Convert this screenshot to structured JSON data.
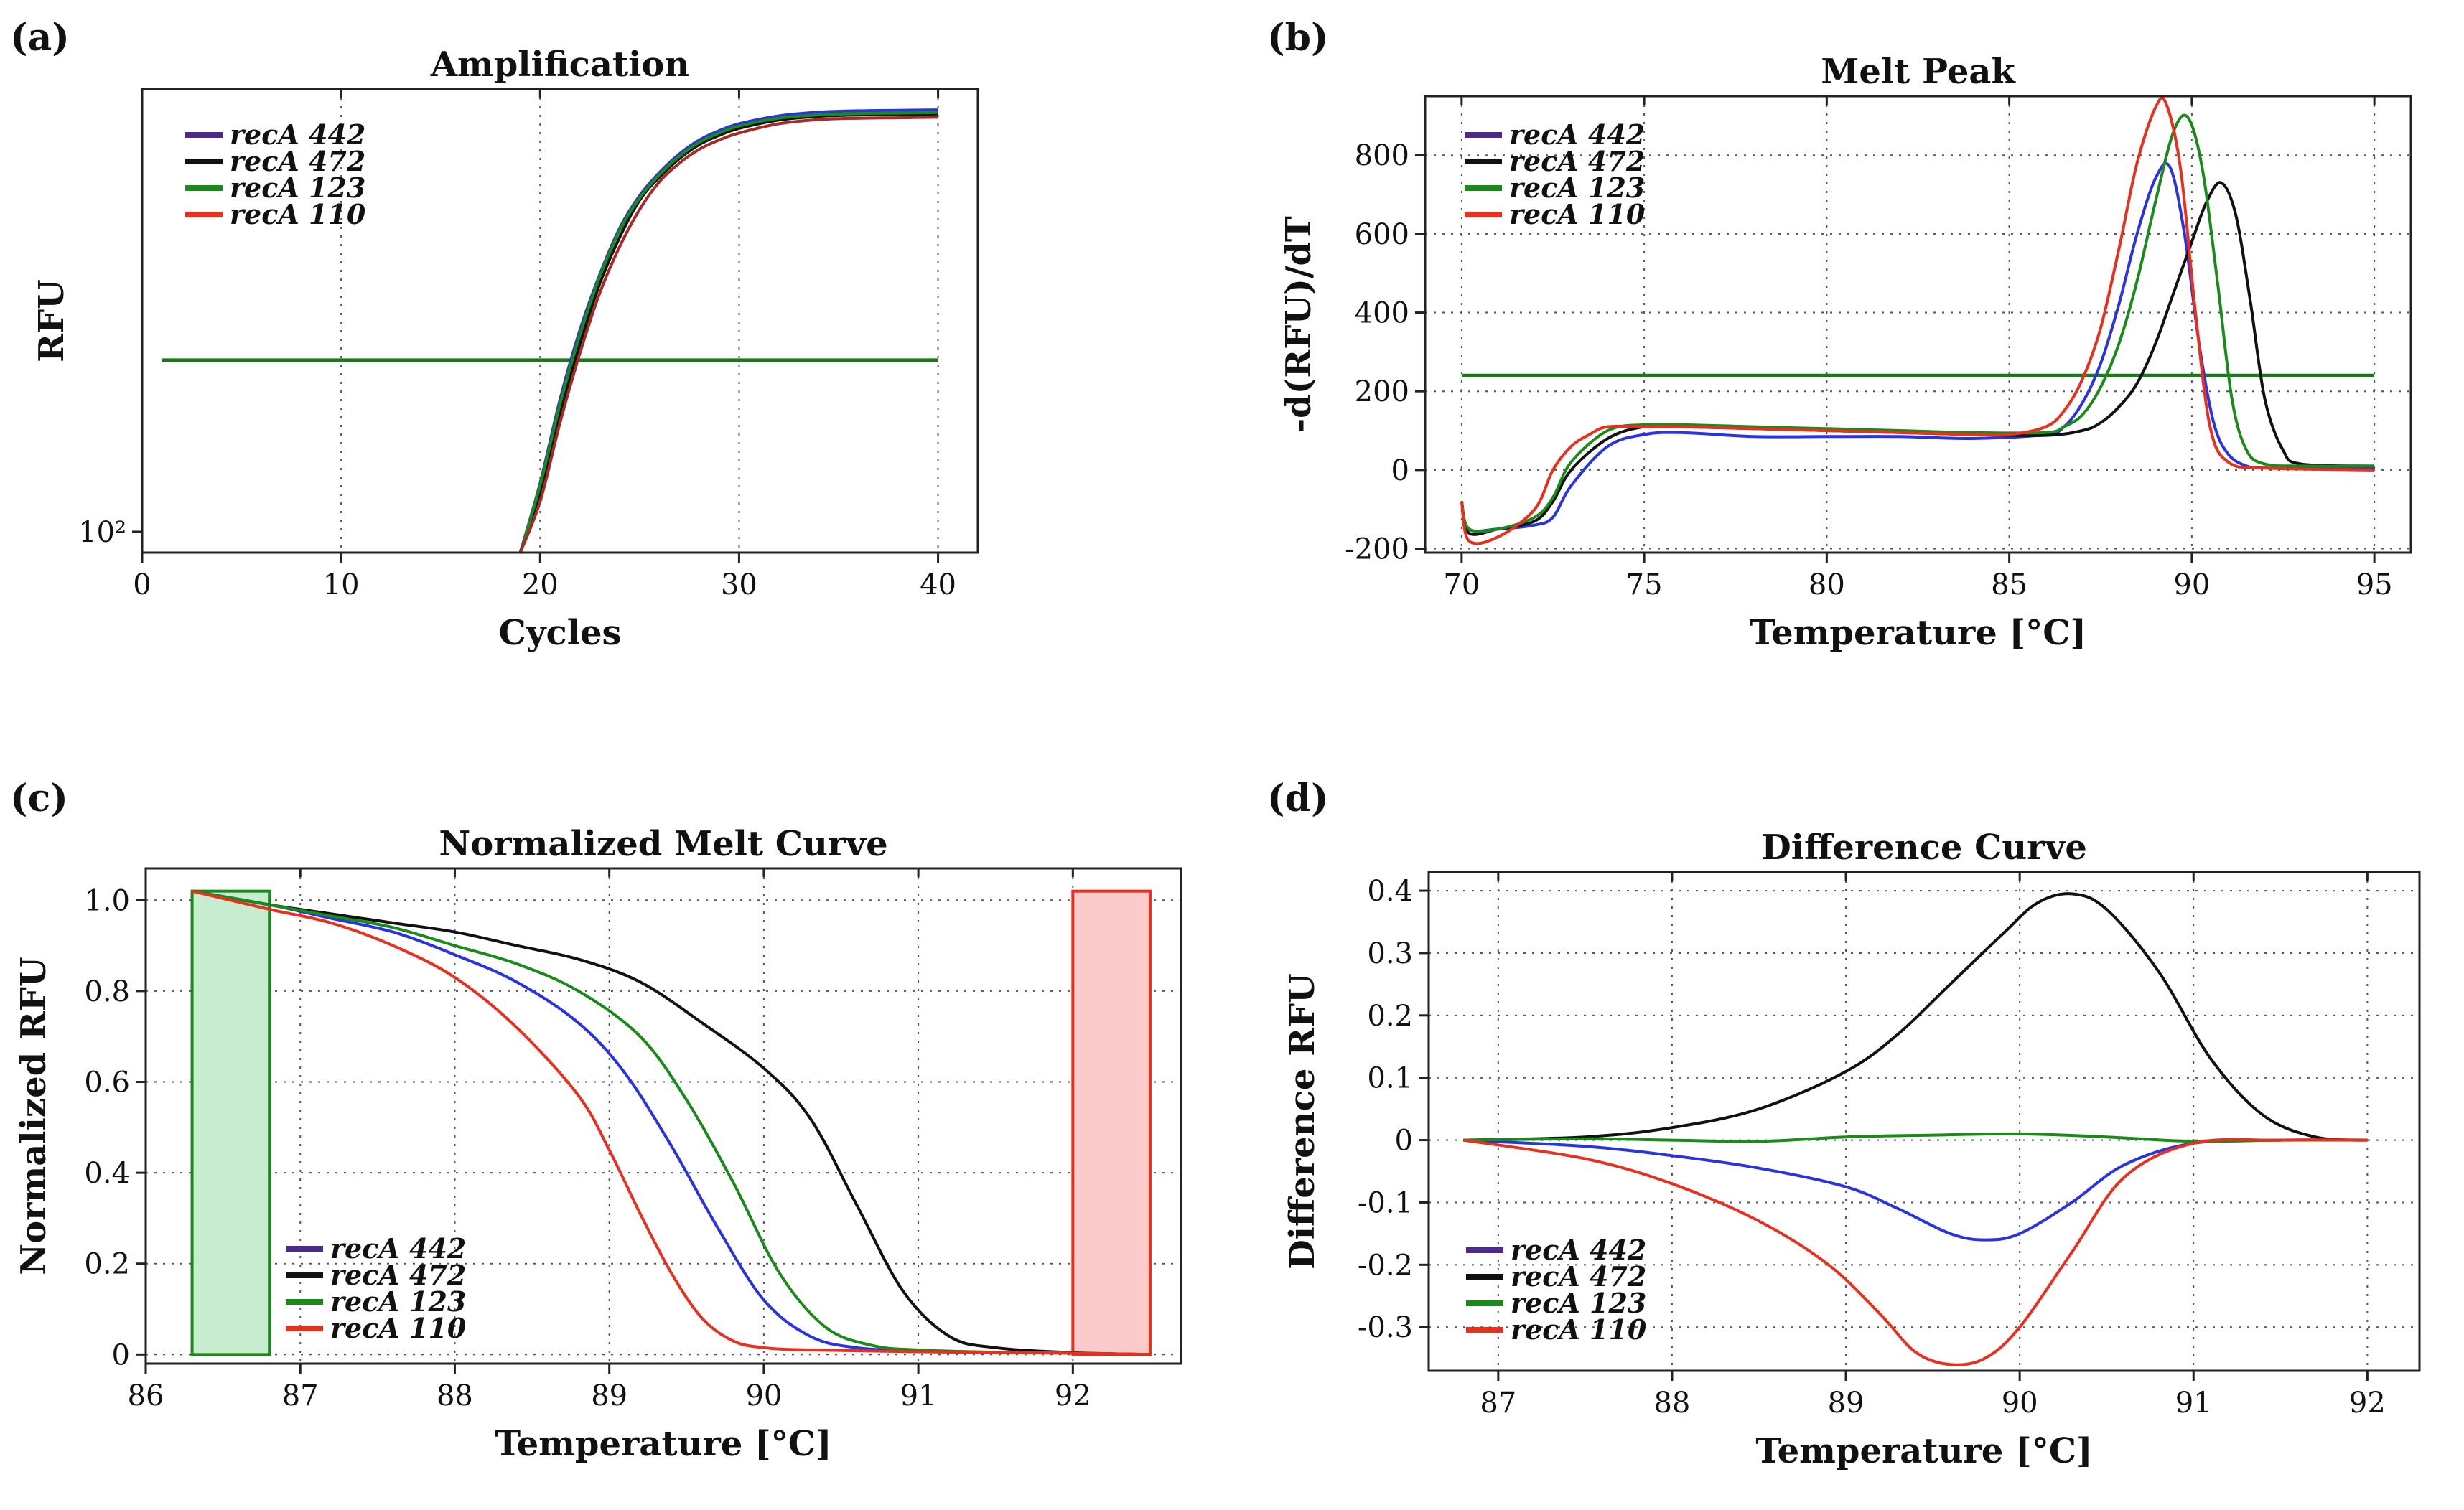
{
  "chart_data": [
    {
      "id": "a",
      "panel_label": "(a)",
      "type": "line",
      "title": "Amplification",
      "xlabel": "Cycles",
      "ylabel": "RFU",
      "xlim": [
        0,
        42
      ],
      "ylim": [
        0,
        10
      ],
      "xticks": [
        0,
        10,
        20,
        30,
        40
      ],
      "xtick_labels": [
        "0",
        "10",
        "20",
        "30",
        "40"
      ],
      "yticks": [
        0.45
      ],
      "ytick_labels": [
        "10²"
      ],
      "grid": "x-dotted",
      "legend_position": "top-left",
      "legend": [
        "recA 442",
        "recA 472",
        "recA 123",
        "recA 110"
      ],
      "legend_colors": [
        "#4b2a8c",
        "#111111",
        "#1a8a1a",
        "#e8301e"
      ],
      "threshold": {
        "name": "threshold",
        "color": "#1a7a1a",
        "x": [
          1,
          40
        ],
        "y": 4.15
      },
      "series": [
        {
          "name": "recA 442",
          "color": "#2a33e0",
          "x": [
            19,
            20,
            21,
            22,
            23,
            24,
            25,
            26,
            27,
            28,
            29,
            30,
            32,
            34,
            36,
            38,
            40
          ],
          "y": [
            0,
            1.5,
            3.3,
            4.8,
            6.0,
            7.0,
            7.7,
            8.2,
            8.6,
            8.9,
            9.1,
            9.25,
            9.42,
            9.5,
            9.53,
            9.54,
            9.55
          ]
        },
        {
          "name": "recA 472",
          "color": "#111111",
          "x": [
            19,
            20,
            21,
            22,
            23,
            24,
            25,
            26,
            27,
            28,
            29,
            30,
            32,
            34,
            36,
            38,
            40
          ],
          "y": [
            0,
            1.3,
            3.0,
            4.5,
            5.8,
            6.8,
            7.6,
            8.1,
            8.5,
            8.8,
            9.0,
            9.15,
            9.33,
            9.41,
            9.44,
            9.45,
            9.46
          ]
        },
        {
          "name": "recA 123",
          "color": "#1a8a1a",
          "x": [
            19,
            20,
            21,
            22,
            23,
            24,
            25,
            26,
            27,
            28,
            29,
            30,
            32,
            34,
            36,
            38,
            40
          ],
          "y": [
            0,
            1.45,
            3.2,
            4.7,
            5.95,
            6.95,
            7.65,
            8.15,
            8.55,
            8.85,
            9.05,
            9.2,
            9.37,
            9.44,
            9.47,
            9.48,
            9.49
          ]
        },
        {
          "name": "recA 110",
          "color": "#a52a2a",
          "x": [
            19,
            20,
            21,
            22,
            23,
            24,
            25,
            26,
            27,
            28,
            29,
            30,
            32,
            34,
            36,
            38,
            40
          ],
          "y": [
            0,
            1.1,
            2.8,
            4.3,
            5.6,
            6.6,
            7.4,
            8.0,
            8.4,
            8.7,
            8.9,
            9.05,
            9.25,
            9.34,
            9.37,
            9.38,
            9.39
          ]
        }
      ]
    },
    {
      "id": "b",
      "panel_label": "(b)",
      "type": "line",
      "title": "Melt Peak",
      "xlabel": "Temperature [°C]",
      "ylabel": "-d(RFU)/dT",
      "xlim": [
        69,
        96
      ],
      "ylim": [
        -210,
        950
      ],
      "xticks": [
        70,
        75,
        80,
        85,
        90,
        95
      ],
      "xtick_labels": [
        "70",
        "75",
        "80",
        "85",
        "90",
        "95"
      ],
      "yticks": [
        -200,
        0,
        200,
        400,
        600,
        800
      ],
      "ytick_labels": [
        "-200",
        "0",
        "200",
        "400",
        "600",
        "800"
      ],
      "grid": "both-dotted",
      "legend_position": "top-left",
      "legend": [
        "recA 442",
        "recA 472",
        "recA 123",
        "recA 110"
      ],
      "legend_colors": [
        "#4b2a8c",
        "#111111",
        "#1a8a1a",
        "#e8301e"
      ],
      "threshold": {
        "name": "threshold",
        "color": "#1a7a1a",
        "x": [
          70,
          95
        ],
        "y": 240
      },
      "series": [
        {
          "name": "recA 442",
          "color": "#2a33e0",
          "x": [
            70,
            70.2,
            71,
            72,
            72.5,
            73,
            74,
            75,
            76,
            78,
            80,
            82,
            84,
            86,
            86.5,
            87,
            87.5,
            88,
            88.5,
            89,
            89.4,
            89.8,
            90.2,
            90.6,
            91,
            91.5,
            92,
            93,
            95
          ],
          "y": [
            -80,
            -150,
            -150,
            -140,
            -120,
            -40,
            60,
            90,
            95,
            85,
            85,
            85,
            80,
            90,
            110,
            170,
            270,
            420,
            600,
            740,
            770,
            600,
            320,
            120,
            40,
            10,
            5,
            5,
            5
          ]
        },
        {
          "name": "recA 472",
          "color": "#111111",
          "x": [
            70,
            70.2,
            71,
            72,
            72.5,
            73,
            74,
            75,
            76,
            78,
            80,
            82,
            84,
            86,
            87,
            87.5,
            88,
            88.5,
            89,
            89.5,
            90,
            90.4,
            90.8,
            91.2,
            91.6,
            92,
            92.5,
            93,
            95
          ],
          "y": [
            -80,
            -160,
            -150,
            -130,
            -80,
            0,
            80,
            110,
            110,
            105,
            100,
            95,
            90,
            88,
            100,
            120,
            160,
            220,
            320,
            450,
            580,
            680,
            730,
            650,
            430,
            180,
            50,
            15,
            10
          ]
        },
        {
          "name": "recA 123",
          "color": "#1a8a1a",
          "x": [
            70,
            70.2,
            71,
            72,
            72.5,
            73,
            74,
            75,
            76,
            78,
            80,
            82,
            84,
            86,
            86.5,
            87,
            87.5,
            88,
            88.5,
            89,
            89.5,
            89.9,
            90.3,
            90.7,
            91.1,
            91.5,
            92,
            93,
            95
          ],
          "y": [
            -80,
            -150,
            -150,
            -120,
            -70,
            20,
            100,
            115,
            115,
            110,
            105,
            100,
            95,
            95,
            110,
            140,
            210,
            320,
            480,
            680,
            860,
            895,
            760,
            480,
            180,
            50,
            15,
            10,
            10
          ]
        },
        {
          "name": "recA 110",
          "color": "#e8301e",
          "x": [
            70,
            70.2,
            71,
            72,
            72.5,
            73,
            73.5,
            74,
            75,
            76,
            78,
            80,
            82,
            84,
            85,
            86,
            86.5,
            87,
            87.5,
            88,
            88.5,
            89,
            89.3,
            89.7,
            90.1,
            90.5,
            91,
            92,
            95
          ],
          "y": [
            -80,
            -180,
            -170,
            -100,
            0,
            60,
            90,
            110,
            110,
            110,
            105,
            100,
            95,
            90,
            90,
            110,
            150,
            230,
            360,
            560,
            780,
            920,
            930,
            760,
            400,
            110,
            20,
            5,
            0
          ]
        }
      ]
    },
    {
      "id": "c",
      "panel_label": "(c)",
      "type": "line",
      "title": "Normalized Melt Curve",
      "xlabel": "Temperature [°C]",
      "ylabel": "Normalized RFU",
      "xlim": [
        86,
        92.7
      ],
      "ylim": [
        -0.02,
        1.07
      ],
      "xticks": [
        86,
        87,
        88,
        89,
        90,
        91,
        92
      ],
      "xtick_labels": [
        "86",
        "87",
        "88",
        "89",
        "90",
        "91",
        "92"
      ],
      "yticks": [
        0,
        0.2,
        0.4,
        0.6,
        0.8,
        1.0
      ],
      "ytick_labels": [
        "0",
        "0.2",
        "0.4",
        "0.6",
        "0.8",
        "1.0"
      ],
      "grid": "both-dotted",
      "legend_position": "bottom-left",
      "legend": [
        "recA 442",
        "recA 472",
        "recA 123",
        "recA 110"
      ],
      "legend_colors": [
        "#4b2a8c",
        "#111111",
        "#1a8a1a",
        "#e8301e"
      ],
      "regions": [
        {
          "name": "pre-melt region",
          "x": [
            86.3,
            86.8
          ],
          "y": [
            0,
            1.02
          ],
          "fill": "#c8ecd0",
          "stroke": "#1a8a1a"
        },
        {
          "name": "post-melt region",
          "x": [
            92,
            92.5
          ],
          "y": [
            0,
            1.02
          ],
          "fill": "#fbcaca",
          "stroke": "#e8301e"
        }
      ],
      "series": [
        {
          "name": "recA 442",
          "color": "#2a33e0",
          "x": [
            86.3,
            86.8,
            87.2,
            87.6,
            88,
            88.4,
            88.8,
            89.1,
            89.4,
            89.7,
            90,
            90.3,
            90.6,
            91,
            91.5,
            92,
            92.5
          ],
          "y": [
            1.02,
            0.99,
            0.96,
            0.93,
            0.88,
            0.82,
            0.73,
            0.62,
            0.46,
            0.28,
            0.12,
            0.04,
            0.015,
            0.008,
            0.005,
            0.003,
            0.0
          ]
        },
        {
          "name": "recA 472",
          "color": "#111111",
          "x": [
            86.3,
            86.8,
            87.2,
            87.6,
            88,
            88.4,
            88.8,
            89.2,
            89.6,
            90,
            90.3,
            90.6,
            90.9,
            91.2,
            91.5,
            92,
            92.5
          ],
          "y": [
            1.02,
            0.99,
            0.97,
            0.95,
            0.93,
            0.9,
            0.87,
            0.82,
            0.73,
            0.63,
            0.52,
            0.33,
            0.14,
            0.04,
            0.015,
            0.004,
            0.0
          ]
        },
        {
          "name": "recA 123",
          "color": "#1a8a1a",
          "x": [
            86.3,
            86.8,
            87.2,
            87.6,
            88,
            88.4,
            88.8,
            89.2,
            89.5,
            89.8,
            90.1,
            90.4,
            90.7,
            91,
            91.5,
            92,
            92.5
          ],
          "y": [
            1.02,
            0.99,
            0.965,
            0.94,
            0.9,
            0.86,
            0.8,
            0.7,
            0.56,
            0.38,
            0.18,
            0.06,
            0.02,
            0.01,
            0.005,
            0.003,
            0.0
          ]
        },
        {
          "name": "recA 110",
          "color": "#e8301e",
          "x": [
            86.3,
            86.8,
            87.2,
            87.6,
            88,
            88.4,
            88.8,
            89,
            89.2,
            89.4,
            89.6,
            89.8,
            90,
            90.3,
            91,
            92,
            92.5
          ],
          "y": [
            1.02,
            0.98,
            0.95,
            0.9,
            0.83,
            0.72,
            0.57,
            0.45,
            0.31,
            0.18,
            0.08,
            0.03,
            0.015,
            0.01,
            0.006,
            0.003,
            0.0
          ]
        }
      ]
    },
    {
      "id": "d",
      "panel_label": "(d)",
      "type": "line",
      "title": "Difference Curve",
      "xlabel": "Temperature [°C]",
      "ylabel": "Difference RFU",
      "xlim": [
        86.6,
        92.3
      ],
      "ylim": [
        -0.37,
        0.43
      ],
      "xticks": [
        87,
        88,
        89,
        90,
        91,
        92
      ],
      "xtick_labels": [
        "87",
        "88",
        "89",
        "90",
        "91",
        "92"
      ],
      "yticks": [
        -0.3,
        -0.2,
        -0.1,
        0,
        0.1,
        0.2,
        0.3,
        0.4
      ],
      "ytick_labels": [
        "-0.3",
        "-0.2",
        "-0.1",
        "0",
        "0.1",
        "0.2",
        "0.3",
        "0.4"
      ],
      "grid": "both-dotted",
      "legend_position": "bottom-left",
      "legend": [
        "recA 442",
        "recA 472",
        "recA 123",
        "recA 110"
      ],
      "legend_colors": [
        "#4b2a8c",
        "#111111",
        "#1a8a1a",
        "#e8301e"
      ],
      "series": [
        {
          "name": "recA 442",
          "color": "#2a33e0",
          "x": [
            86.8,
            87.5,
            88,
            88.5,
            89,
            89.3,
            89.6,
            89.8,
            90,
            90.3,
            90.6,
            91,
            91.5,
            92
          ],
          "y": [
            0,
            -0.01,
            -0.025,
            -0.045,
            -0.075,
            -0.11,
            -0.15,
            -0.16,
            -0.15,
            -0.1,
            -0.04,
            -0.005,
            0,
            0
          ]
        },
        {
          "name": "recA 472",
          "color": "#111111",
          "x": [
            86.8,
            87.5,
            88,
            88.5,
            89,
            89.3,
            89.6,
            89.9,
            90.1,
            90.3,
            90.5,
            90.8,
            91.1,
            91.4,
            91.7,
            92
          ],
          "y": [
            0,
            0.005,
            0.02,
            0.05,
            0.11,
            0.17,
            0.25,
            0.33,
            0.38,
            0.395,
            0.37,
            0.27,
            0.13,
            0.04,
            0.005,
            0
          ]
        },
        {
          "name": "recA 123",
          "color": "#1a8a1a",
          "x": [
            86.8,
            87.5,
            88,
            88.5,
            89,
            89.5,
            90,
            90.5,
            91,
            91.5,
            92
          ],
          "y": [
            0,
            0.002,
            0.0,
            -0.002,
            0.005,
            0.008,
            0.01,
            0.005,
            -0.002,
            0,
            0
          ]
        },
        {
          "name": "recA 110",
          "color": "#e8301e",
          "x": [
            86.8,
            87.5,
            88,
            88.5,
            88.9,
            89.2,
            89.4,
            89.6,
            89.8,
            90,
            90.3,
            90.6,
            91,
            91.5,
            92
          ],
          "y": [
            0,
            -0.03,
            -0.07,
            -0.13,
            -0.2,
            -0.28,
            -0.34,
            -0.36,
            -0.35,
            -0.3,
            -0.18,
            -0.06,
            -0.005,
            0,
            0
          ]
        }
      ]
    }
  ]
}
